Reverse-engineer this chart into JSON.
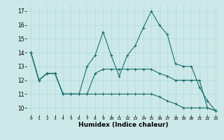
{
  "xlabel": "Humidex (Indice chaleur)",
  "ylabel": "",
  "background_color": "#cce8e8",
  "line_color": "#1a7070",
  "xlim": [
    -0.5,
    23.5
  ],
  "ylim": [
    9.5,
    17.5
  ],
  "xticks": [
    0,
    1,
    2,
    3,
    4,
    5,
    6,
    7,
    8,
    9,
    10,
    11,
    12,
    13,
    14,
    15,
    16,
    17,
    18,
    19,
    20,
    21,
    22,
    23
  ],
  "yticks": [
    10,
    11,
    12,
    13,
    14,
    15,
    16,
    17
  ],
  "series": [
    [
      14.0,
      12.0,
      12.5,
      12.5,
      11.0,
      11.0,
      11.0,
      13.0,
      13.8,
      15.5,
      13.8,
      12.3,
      13.8,
      14.5,
      15.8,
      17.0,
      16.0,
      15.3,
      13.2,
      13.0,
      13.0,
      11.5,
      10.5,
      9.8
    ],
    [
      14.0,
      12.0,
      12.5,
      12.5,
      11.0,
      11.0,
      11.0,
      11.0,
      12.5,
      12.8,
      12.8,
      12.8,
      12.8,
      12.8,
      12.8,
      12.8,
      12.5,
      12.3,
      12.0,
      12.0,
      12.0,
      12.0,
      10.0,
      9.8
    ],
    [
      14.0,
      12.0,
      12.5,
      12.5,
      11.0,
      11.0,
      11.0,
      11.0,
      11.0,
      11.0,
      11.0,
      11.0,
      11.0,
      11.0,
      11.0,
      11.0,
      10.8,
      10.5,
      10.3,
      10.0,
      10.0,
      10.0,
      10.0,
      9.8
    ]
  ]
}
